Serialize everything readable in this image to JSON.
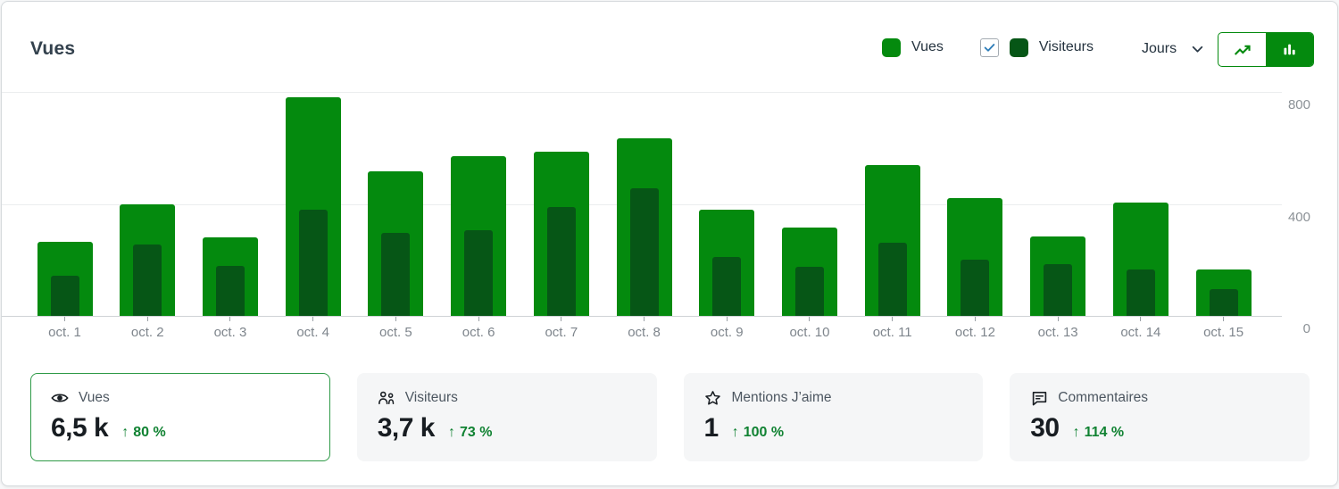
{
  "header": {
    "title": "Vues",
    "legend": [
      {
        "label": "Vues",
        "color": "#048a0e",
        "has_checkbox": false
      },
      {
        "label": "Visiteurs",
        "color": "#065616",
        "has_checkbox": true,
        "checked": true
      }
    ],
    "period_dropdown": {
      "label": "Jours"
    },
    "view_toggle": {
      "options": [
        "line-chart",
        "bar-chart"
      ],
      "selected": "bar-chart"
    }
  },
  "chart_data": {
    "type": "bar",
    "title": "Vues",
    "categories": [
      "oct. 1",
      "oct. 2",
      "oct. 3",
      "oct. 4",
      "oct. 5",
      "oct. 6",
      "oct. 7",
      "oct. 8",
      "oct. 9",
      "oct. 10",
      "oct. 11",
      "oct. 12",
      "oct. 13",
      "oct. 14",
      "oct. 15"
    ],
    "series": [
      {
        "name": "Vues",
        "color": "#048a0e",
        "values": [
          265,
          400,
          280,
          780,
          515,
          570,
          585,
          635,
          380,
          315,
          540,
          420,
          285,
          405,
          165
        ]
      },
      {
        "name": "Visiteurs",
        "color": "#065616",
        "values": [
          145,
          255,
          180,
          380,
          295,
          305,
          390,
          455,
          210,
          175,
          260,
          200,
          185,
          165,
          95
        ]
      }
    ],
    "xlabel": "",
    "ylabel": "",
    "ylim": [
      0,
      800
    ],
    "yticks": [
      0,
      400,
      800
    ],
    "grid": true,
    "legend_position": "top-right",
    "bar_style": "overlaid"
  },
  "stats": [
    {
      "icon": "eye-icon",
      "label": "Vues",
      "value": "6,5 k",
      "delta": "80 %",
      "direction": "up",
      "selected": true
    },
    {
      "icon": "people-icon",
      "label": "Visiteurs",
      "value": "3,7 k",
      "delta": "73 %",
      "direction": "up",
      "selected": false
    },
    {
      "icon": "star-icon",
      "label": "Mentions J’aime",
      "value": "1",
      "delta": "100 %",
      "direction": "up",
      "selected": false
    },
    {
      "icon": "comment-icon",
      "label": "Commentaires",
      "value": "30",
      "delta": "114 %",
      "direction": "up",
      "selected": false
    }
  ],
  "ui": {
    "up_arrow": "↑"
  },
  "colors": {
    "vues_green": "#048a0e",
    "visiteurs_green": "#065616",
    "delta_green": "#108232",
    "selected_card_border": "#2e9a47",
    "toggle_border": "#048a0e",
    "checkbox_check_blue": "#2d7cb8",
    "grid_gray": "#ebedee",
    "axis_gray": "#cfd3d6",
    "axis_text_gray": "#8b9196",
    "title_text": "#33414d"
  }
}
